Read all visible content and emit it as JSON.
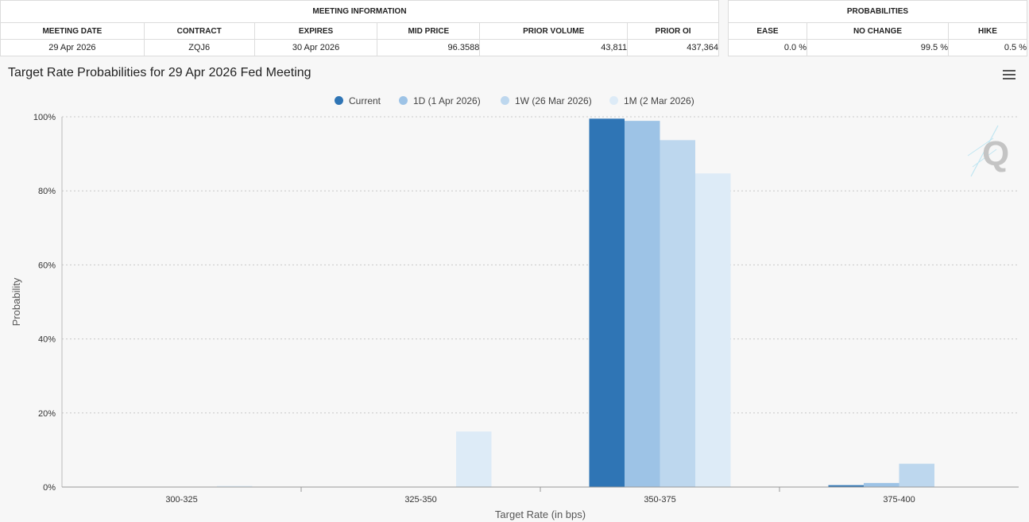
{
  "meeting_info": {
    "group_title": "MEETING INFORMATION",
    "headers": [
      "MEETING DATE",
      "CONTRACT",
      "EXPIRES",
      "MID PRICE",
      "PRIOR VOLUME",
      "PRIOR OI"
    ],
    "values": [
      "29 Apr 2026",
      "ZQJ6",
      "30 Apr 2026",
      "96.3588",
      "43,811",
      "437,364"
    ]
  },
  "probabilities": {
    "group_title": "PROBABILITIES",
    "headers": [
      "EASE",
      "NO CHANGE",
      "HIKE"
    ],
    "values": [
      "0.0 %",
      "99.5 %",
      "0.5 %"
    ]
  },
  "chart_title": "Target Rate Probabilities for 29 Apr 2026 Fed Meeting",
  "chart_data": {
    "type": "bar",
    "title": "Target Rate Probabilities for 29 Apr 2026 Fed Meeting",
    "xlabel": "Target Rate (in bps)",
    "ylabel": "Probability",
    "ylim": [
      0,
      100
    ],
    "y_ticks": [
      "0%",
      "20%",
      "40%",
      "60%",
      "80%",
      "100%"
    ],
    "y_tick_values": [
      0,
      20,
      40,
      60,
      80,
      100
    ],
    "grid": true,
    "legend_position": "top-center",
    "categories": [
      "300-325",
      "325-350",
      "350-375",
      "375-400"
    ],
    "series": [
      {
        "name": "Current",
        "color": "#2f75b5",
        "values": [
          0,
          0,
          99.5,
          0.5
        ]
      },
      {
        "name": "1D (1 Apr 2026)",
        "color": "#9dc3e6",
        "values": [
          0,
          0,
          98.9,
          1.1
        ]
      },
      {
        "name": "1W (26 Mar 2026)",
        "color": "#bdd7ee",
        "values": [
          0,
          0,
          93.7,
          6.3
        ]
      },
      {
        "name": "1M (2 Mar 2026)",
        "color": "#ddebf7",
        "values": [
          0.3,
          15.0,
          84.7,
          0
        ]
      }
    ]
  }
}
